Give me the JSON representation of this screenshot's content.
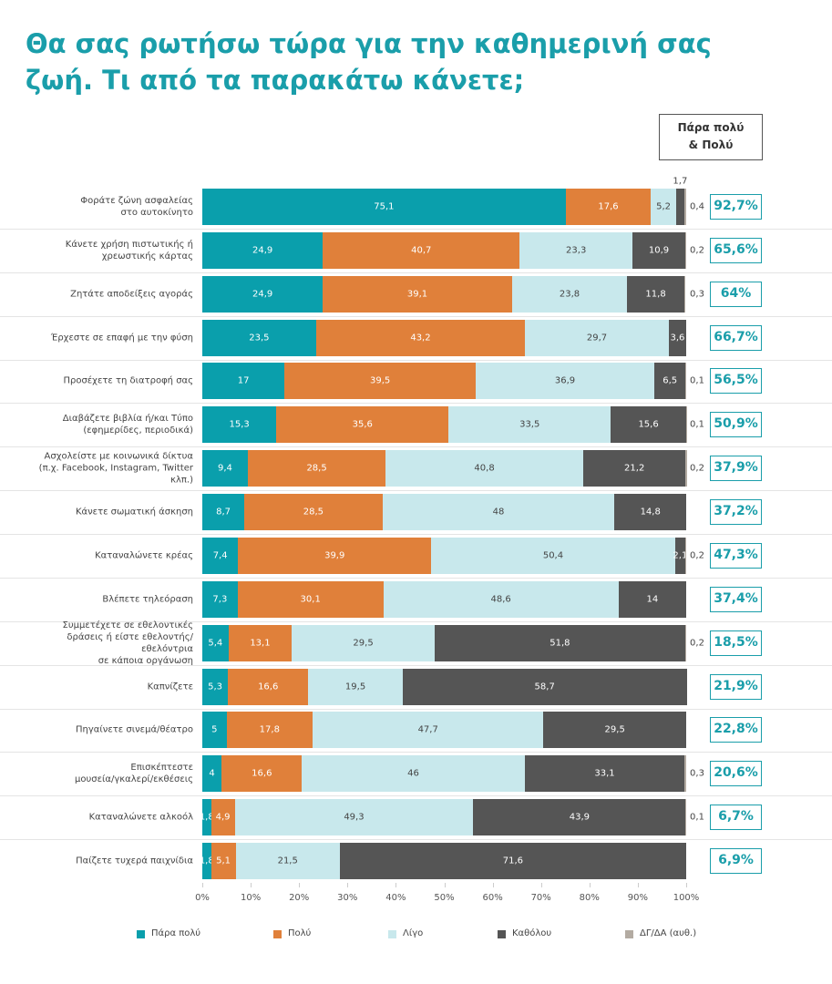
{
  "chart_data": {
    "type": "stacked-bar-horizontal",
    "title": "Θα σας ρωτήσω τώρα για την καθημερινή σας\nζωή. Τι από τα παρακάτω κάνετε;",
    "categories": [
      "Φοράτε ζώνη ασφαλείας\nστο αυτοκίνητο",
      "Κάνετε χρήση πιστωτικής ή\nχρεωστικής κάρτας",
      "Ζητάτε αποδείξεις αγοράς",
      "Έρχεστε σε επαφή με την φύση",
      "Προσέχετε τη διατροφή σας",
      "Διαβάζετε βιβλία ή/και Τύπο\n(εφημερίδες, περιοδικά)",
      "Ασχολείστε με κοινωνικά δίκτυα\n(π.χ. Facebook, Instagram, Twitter κλπ.)",
      "Κάνετε σωματική άσκηση",
      "Καταναλώνετε κρέας",
      "Βλέπετε τηλεόραση",
      "Συμμετέχετε σε εθελοντικές\nδράσεις ή είστε εθελοντής/εθελόντρια\nσε κάποια οργάνωση",
      "Καπνίζετε",
      "Πηγαίνετε σινεμά/θέατρο",
      "Επισκέπτεστε\nμουσεία/γκαλερί/εκθέσεις",
      "Καταναλώνετε αλκοόλ",
      "Παίζετε τυχερά παιχνίδια"
    ],
    "series": [
      {
        "name": "Πάρα πολύ",
        "color": "#0a9fac",
        "values": [
          75.1,
          24.9,
          24.9,
          23.5,
          17,
          15.3,
          9.4,
          8.7,
          7.4,
          7.3,
          5.4,
          5.3,
          5,
          4,
          1.8,
          1.8
        ],
        "value_labels": [
          "75,1",
          "24,9",
          "24,9",
          "23,5",
          "17",
          "15,3",
          "9,4",
          "8,7",
          "7,4",
          "7,3",
          "5,4",
          "5,3",
          "5",
          "4",
          "1,8",
          "1,8"
        ]
      },
      {
        "name": "Πολύ",
        "color": "#e0803a",
        "values": [
          17.6,
          40.7,
          39.1,
          43.2,
          39.5,
          35.6,
          28.5,
          28.5,
          39.9,
          30.1,
          13.1,
          16.6,
          17.8,
          16.6,
          4.9,
          5.1
        ],
        "value_labels": [
          "17,6",
          "40,7",
          "39,1",
          "43,2",
          "39,5",
          "35,6",
          "28,5",
          "28,5",
          "39,9",
          "30,1",
          "13,1",
          "16,6",
          "17,8",
          "16,6",
          "4,9",
          "5,1"
        ]
      },
      {
        "name": "Λίγο",
        "color": "#c8e8ec",
        "values": [
          5.2,
          23.3,
          23.8,
          29.7,
          36.9,
          33.5,
          40.8,
          48,
          50.4,
          48.6,
          29.5,
          19.5,
          47.7,
          46,
          49.3,
          21.5
        ],
        "value_labels": [
          "5,2",
          "23,3",
          "23,8",
          "29,7",
          "36,9",
          "33,5",
          "40,8",
          "48",
          "50,4",
          "48,6",
          "29,5",
          "19,5",
          "47,7",
          "46",
          "49,3",
          "21,5"
        ]
      },
      {
        "name": "Καθόλου",
        "color": "#555555",
        "values": [
          1.7,
          10.9,
          11.8,
          3.6,
          6.5,
          15.6,
          21.2,
          14.8,
          2.1,
          14,
          51.8,
          58.7,
          29.5,
          33.1,
          43.9,
          71.6
        ],
        "value_labels": [
          "1,7",
          "10,9",
          "11,8",
          "3,6",
          "6,5",
          "15,6",
          "21,2",
          "14,8",
          "2,1",
          "14",
          "51,8",
          "58,7",
          "29,5",
          "33,1",
          "43,9",
          "71,6"
        ]
      },
      {
        "name": "ΔΓ/ΔΑ (αυθ.)",
        "color": "#b3aba2",
        "values": [
          0.4,
          0.2,
          0.3,
          null,
          0.1,
          0.1,
          0.2,
          null,
          0.2,
          null,
          0.2,
          null,
          null,
          0.3,
          0.1,
          null
        ],
        "value_labels": [
          "0,4",
          "0,2",
          "0,3",
          null,
          "0,1",
          "0,1",
          "0,2",
          null,
          "0,2",
          null,
          "0,2",
          null,
          null,
          "0,3",
          "0,1",
          null
        ]
      }
    ],
    "xlim": [
      0,
      100
    ],
    "xticks": [
      {
        "value": 0,
        "label": "0%"
      },
      {
        "value": 10,
        "label": "10%"
      },
      {
        "value": 20,
        "label": "20%"
      },
      {
        "value": 30,
        "label": "30%"
      },
      {
        "value": 40,
        "label": "40%"
      },
      {
        "value": 50,
        "label": "50%"
      },
      {
        "value": 60,
        "label": "60%"
      },
      {
        "value": 70,
        "label": "70%"
      },
      {
        "value": 80,
        "label": "80%"
      },
      {
        "value": 90,
        "label": "90%"
      },
      {
        "value": 100,
        "label": "100%"
      }
    ],
    "summary": {
      "title": "Πάρα πολύ\n& Πολύ",
      "values": [
        92.7,
        65.6,
        64,
        66.7,
        56.5,
        50.9,
        37.9,
        37.2,
        47.3,
        37.4,
        18.5,
        21.9,
        22.8,
        20.6,
        6.7,
        6.9
      ],
      "value_labels": [
        "92,7%",
        "65,6%",
        "64%",
        "66,7%",
        "56,5%",
        "50,9%",
        "37,9%",
        "37,2%",
        "47,3%",
        "37,4%",
        "18,5%",
        "21,9%",
        "22,8%",
        "20,6%",
        "6,7%",
        "6,9%"
      ]
    }
  }
}
